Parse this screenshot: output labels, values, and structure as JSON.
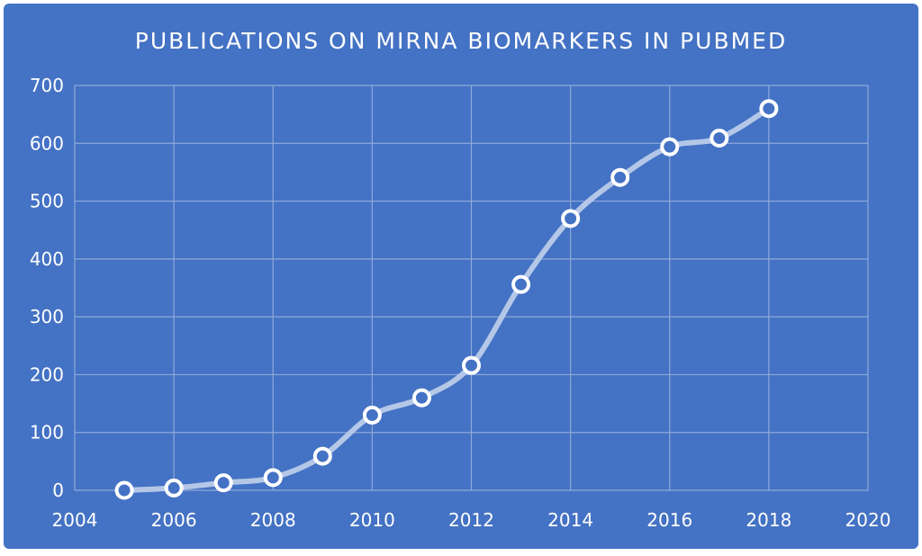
{
  "colors": {
    "background": "#4472c4",
    "gridline": "#8eaadb",
    "line": "#b4c7e7",
    "marker_fill": "#4472c4",
    "marker_stroke": "#ffffff",
    "text": "#ffffff"
  },
  "chart_data": {
    "type": "scatter",
    "title": "PUBLICATIONS ON MIRNA BIOMARKERS IN PUBMED",
    "xlabel": "",
    "ylabel": "",
    "xlim": [
      2004,
      2020
    ],
    "ylim": [
      0,
      700
    ],
    "x_ticks": [
      2004,
      2006,
      2008,
      2010,
      2012,
      2014,
      2016,
      2018,
      2020
    ],
    "y_ticks": [
      0,
      100,
      200,
      300,
      400,
      500,
      600,
      700
    ],
    "grid": true,
    "legend": "none",
    "line_style": "smooth-lines-with-markers",
    "series": [
      {
        "x": [
          2005,
          2006,
          2007,
          2008,
          2009,
          2010,
          2011,
          2012,
          2013,
          2014,
          2015,
          2016,
          2017,
          2018
        ],
        "values": [
          0,
          4,
          13,
          22,
          59,
          130,
          160,
          216,
          356,
          470,
          541,
          594,
          609,
          660
        ]
      }
    ]
  }
}
